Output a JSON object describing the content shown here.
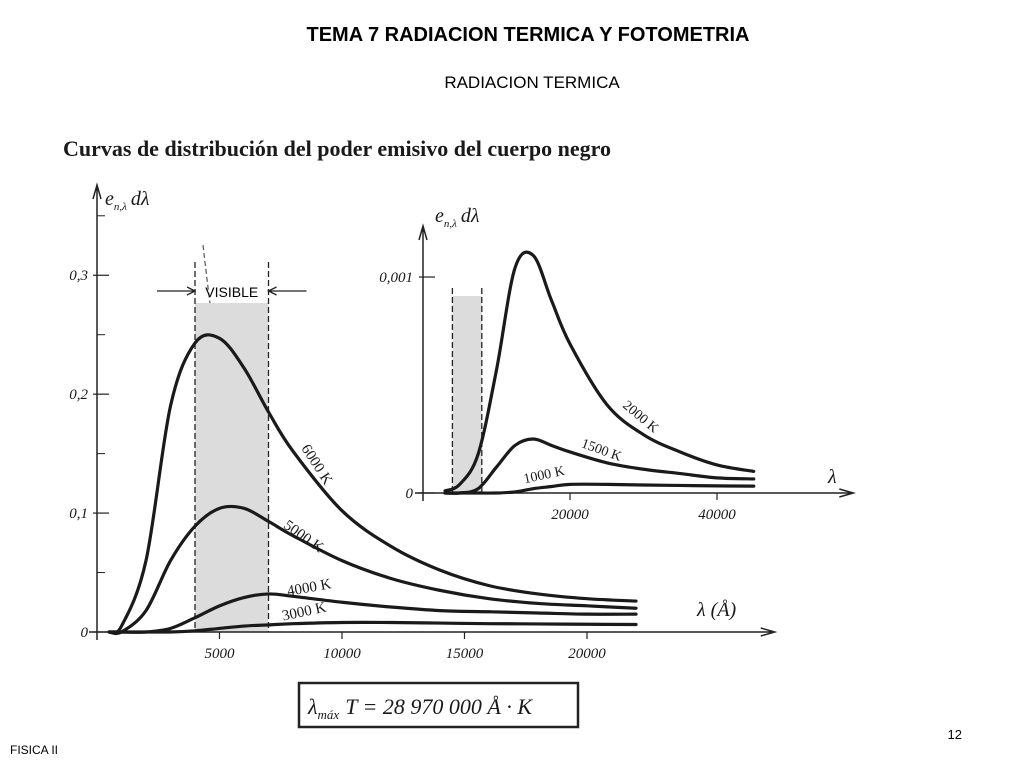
{
  "title": "TEMA 7 RADIACION TERMICA Y FOTOMETRIA",
  "subtitle": "RADIACION TERMICA",
  "figure_title": "Curvas de distribución del poder emisivo del cuerpo negro",
  "formula": {
    "symbol": "λ",
    "subscript": "máx",
    "expression": "T = 28 970 000 Å · K"
  },
  "footer": "FISICA II",
  "page_number": "12",
  "chart_data": [
    {
      "type": "line",
      "y_label": {
        "symbol": "e",
        "subscript": "n,λ",
        "suffix": "dλ"
      },
      "x_label": "λ (Å)",
      "annotation": "VISIBLE",
      "visible_band": [
        4000,
        7000
      ],
      "x": [
        500,
        1000,
        2000,
        3000,
        4000,
        5000,
        6000,
        7000,
        8000,
        10000,
        12000,
        14000,
        16000,
        18000,
        20000,
        22000
      ],
      "series": [
        {
          "name": "6000 K",
          "color": "#1a1a1a",
          "values": [
            0,
            0.005,
            0.06,
            0.19,
            0.243,
            0.247,
            0.222,
            0.185,
            0.152,
            0.102,
            0.072,
            0.052,
            0.039,
            0.032,
            0.028,
            0.026
          ]
        },
        {
          "name": "5000 K",
          "color": "#1a1a1a",
          "values": [
            0,
            0,
            0.018,
            0.06,
            0.089,
            0.104,
            0.104,
            0.093,
            0.081,
            0.06,
            0.045,
            0.035,
            0.028,
            0.024,
            0.022,
            0.02
          ]
        },
        {
          "name": "4000 K",
          "color": "#1a1a1a",
          "values": [
            0,
            0,
            0,
            0.003,
            0.012,
            0.022,
            0.029,
            0.032,
            0.03,
            0.025,
            0.021,
            0.018,
            0.017,
            0.016,
            0.015,
            0.015
          ]
        },
        {
          "name": "3000 K",
          "color": "#1a1a1a",
          "values": [
            0,
            0,
            0,
            0,
            0.001,
            0.003,
            0.005,
            0.006,
            0.007,
            0.008,
            0.008,
            0.0075,
            0.007,
            0.0068,
            0.0065,
            0.0063
          ]
        }
      ],
      "xlim": [
        0,
        27500
      ],
      "ylim": [
        0,
        0.37
      ],
      "xticks": [
        5000,
        10000,
        15000,
        20000
      ],
      "yticks": [
        0,
        {
          "value": 0.1,
          "label": "0,1"
        },
        {
          "value": 0.2,
          "label": "0,2"
        },
        {
          "value": 0.3,
          "label": "0,3"
        }
      ],
      "yminorticks": [
        0.05,
        0.15,
        0.25,
        0.35
      ]
    },
    {
      "type": "line",
      "y_label": {
        "symbol": "e",
        "subscript": "n,λ",
        "suffix": "dλ"
      },
      "x_label": "λ",
      "visible_band": [
        4000,
        8000
      ],
      "x": [
        3000,
        5000,
        7500,
        10000,
        12500,
        15000,
        17500,
        20000,
        25000,
        30000,
        35000,
        40000,
        45000
      ],
      "series": [
        {
          "name": "2000 K",
          "color": "#1a1a1a",
          "values": [
            1e-05,
            4e-05,
            0.00018,
            0.00057,
            0.00104,
            0.0011,
            0.00089,
            0.00069,
            0.00041,
            0.00027,
            0.00019,
            0.00013,
            0.0001
          ]
        },
        {
          "name": "1500 K",
          "color": "#1a1a1a",
          "values": [
            0,
            0,
            2e-05,
            0.00012,
            0.00022,
            0.00025,
            0.00022,
            0.00019,
            0.00014,
            0.00011,
            9e-05,
            7e-05,
            6.5e-05
          ]
        },
        {
          "name": "1000 K",
          "color": "#1a1a1a",
          "values": [
            0,
            0,
            0,
            0,
            5e-06,
            2e-05,
            3e-05,
            4e-05,
            4e-05,
            3.7e-05,
            3.5e-05,
            3.3e-05,
            3.2e-05
          ]
        }
      ],
      "xlim": [
        0,
        58000
      ],
      "ylim": [
        0,
        0.00122
      ],
      "xticks": [
        20000,
        40000
      ],
      "yticks": [
        0,
        {
          "value": 0.001,
          "label": "0,001"
        }
      ]
    }
  ]
}
